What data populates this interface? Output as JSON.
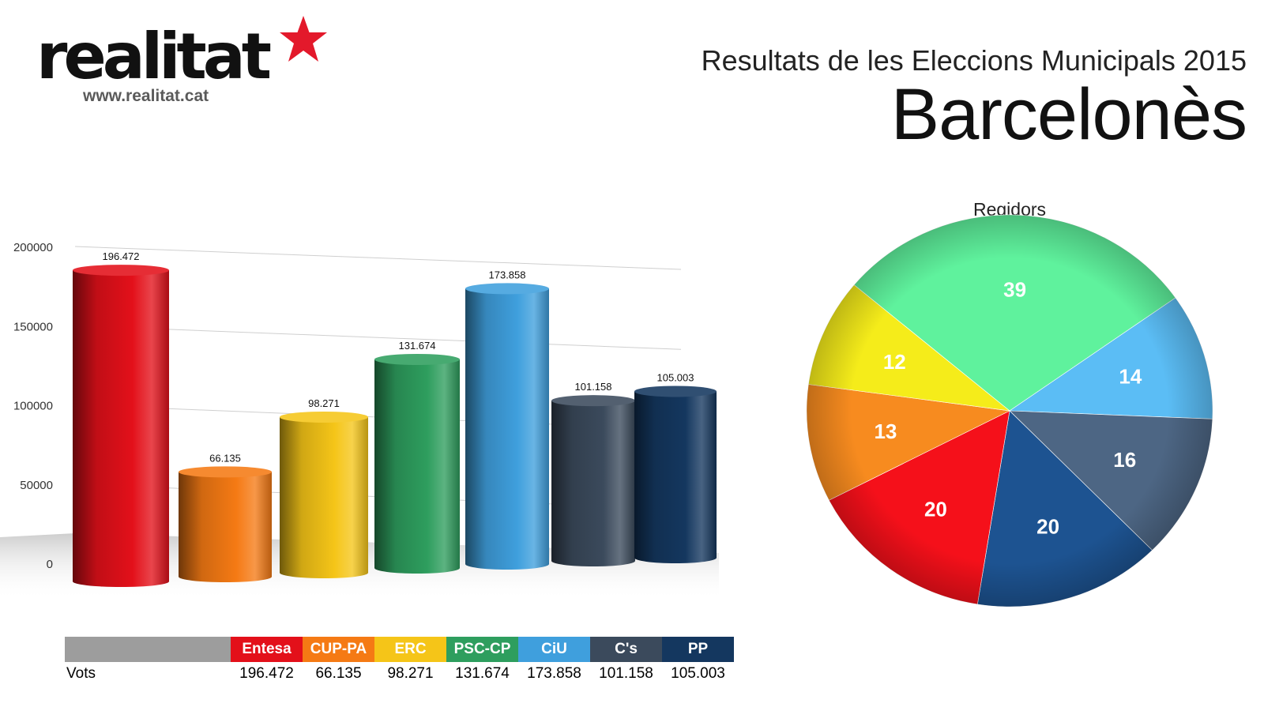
{
  "logo": {
    "text": "realitat",
    "url": "www.realitat.cat",
    "star_color": "#e3192b"
  },
  "header": {
    "subtitle": "Resultats de les Eleccions Municipals 2015",
    "title": "Barcelonès"
  },
  "chart_data": [
    {
      "type": "bar",
      "categories": [
        "Entesa",
        "CUP-PA",
        "ERC",
        "PSC-CP",
        "CiU",
        "C's",
        "PP"
      ],
      "values": [
        196472,
        66135,
        98271,
        131674,
        173858,
        101158,
        105003
      ],
      "data_labels": [
        "196.472",
        "66.135",
        "98.271",
        "131.674",
        "173.858",
        "101.158",
        "105.003"
      ],
      "colors": [
        "#e3101a",
        "#f57a14",
        "#f5c518",
        "#2e9e5e",
        "#3f9fdd",
        "#3b4a5c",
        "#14375f"
      ],
      "yticks": [
        "0",
        "50000",
        "100000",
        "150000",
        "200000"
      ],
      "ylim": [
        0,
        200000
      ],
      "grid": true,
      "legend_table": {
        "row_label": "Vots",
        "values": [
          "196.472",
          "66.135",
          "98.271",
          "131.674",
          "173.858",
          "101.158",
          "105.003"
        ]
      }
    },
    {
      "type": "pie",
      "title": "Regidors",
      "labels": [
        "PSC-CP",
        "CiU",
        "C's",
        "PP",
        "Entesa",
        "CUP-PA",
        "ERC"
      ],
      "values": [
        39,
        14,
        16,
        20,
        20,
        13,
        12
      ],
      "colors": [
        "#5ff29d",
        "#5bbdf5",
        "#4d6684",
        "#1d5391",
        "#f5101a",
        "#f78b1f",
        "#f5ec1a"
      ]
    }
  ]
}
